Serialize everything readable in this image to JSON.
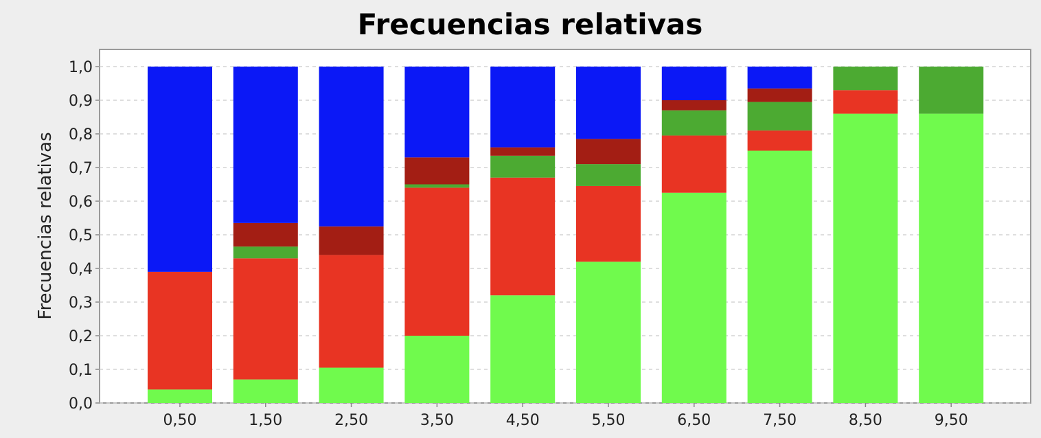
{
  "chart_data": {
    "type": "bar",
    "stacked": true,
    "normalized": true,
    "title": "Frecuencias relativas",
    "xlabel": "",
    "ylabel": "Frecuencias relativas",
    "ylim": [
      0,
      1
    ],
    "yticks": [
      "0,0",
      "0,1",
      "0,2",
      "0,3",
      "0,4",
      "0,5",
      "0,6",
      "0,7",
      "0,8",
      "0,9",
      "1,0"
    ],
    "grid": true,
    "legend": "none",
    "categories": [
      "0,50",
      "1,50",
      "2,50",
      "3,50",
      "4,50",
      "5,50",
      "6,50",
      "7,50",
      "8,50",
      "9,50"
    ],
    "series": [
      {
        "color": "#70fa4d",
        "values": [
          0.04,
          0.07,
          0.105,
          0.2,
          0.32,
          0.42,
          0.625,
          0.75,
          0.86,
          0.86
        ]
      },
      {
        "color": "#e83423",
        "values": [
          0.35,
          0.36,
          0.335,
          0.44,
          0.35,
          0.225,
          0.17,
          0.06,
          0.07,
          0.0
        ]
      },
      {
        "color": "#4caa32",
        "values": [
          0.0,
          0.035,
          0.0,
          0.01,
          0.065,
          0.065,
          0.075,
          0.085,
          0.07,
          0.14
        ]
      },
      {
        "color": "#a31e14",
        "values": [
          0.0,
          0.07,
          0.085,
          0.08,
          0.025,
          0.075,
          0.03,
          0.04,
          0.0,
          0.0
        ]
      },
      {
        "color": "#0b18f6",
        "values": [
          0.61,
          0.465,
          0.475,
          0.27,
          0.24,
          0.215,
          0.1,
          0.065,
          0.0,
          0.0
        ]
      }
    ]
  }
}
